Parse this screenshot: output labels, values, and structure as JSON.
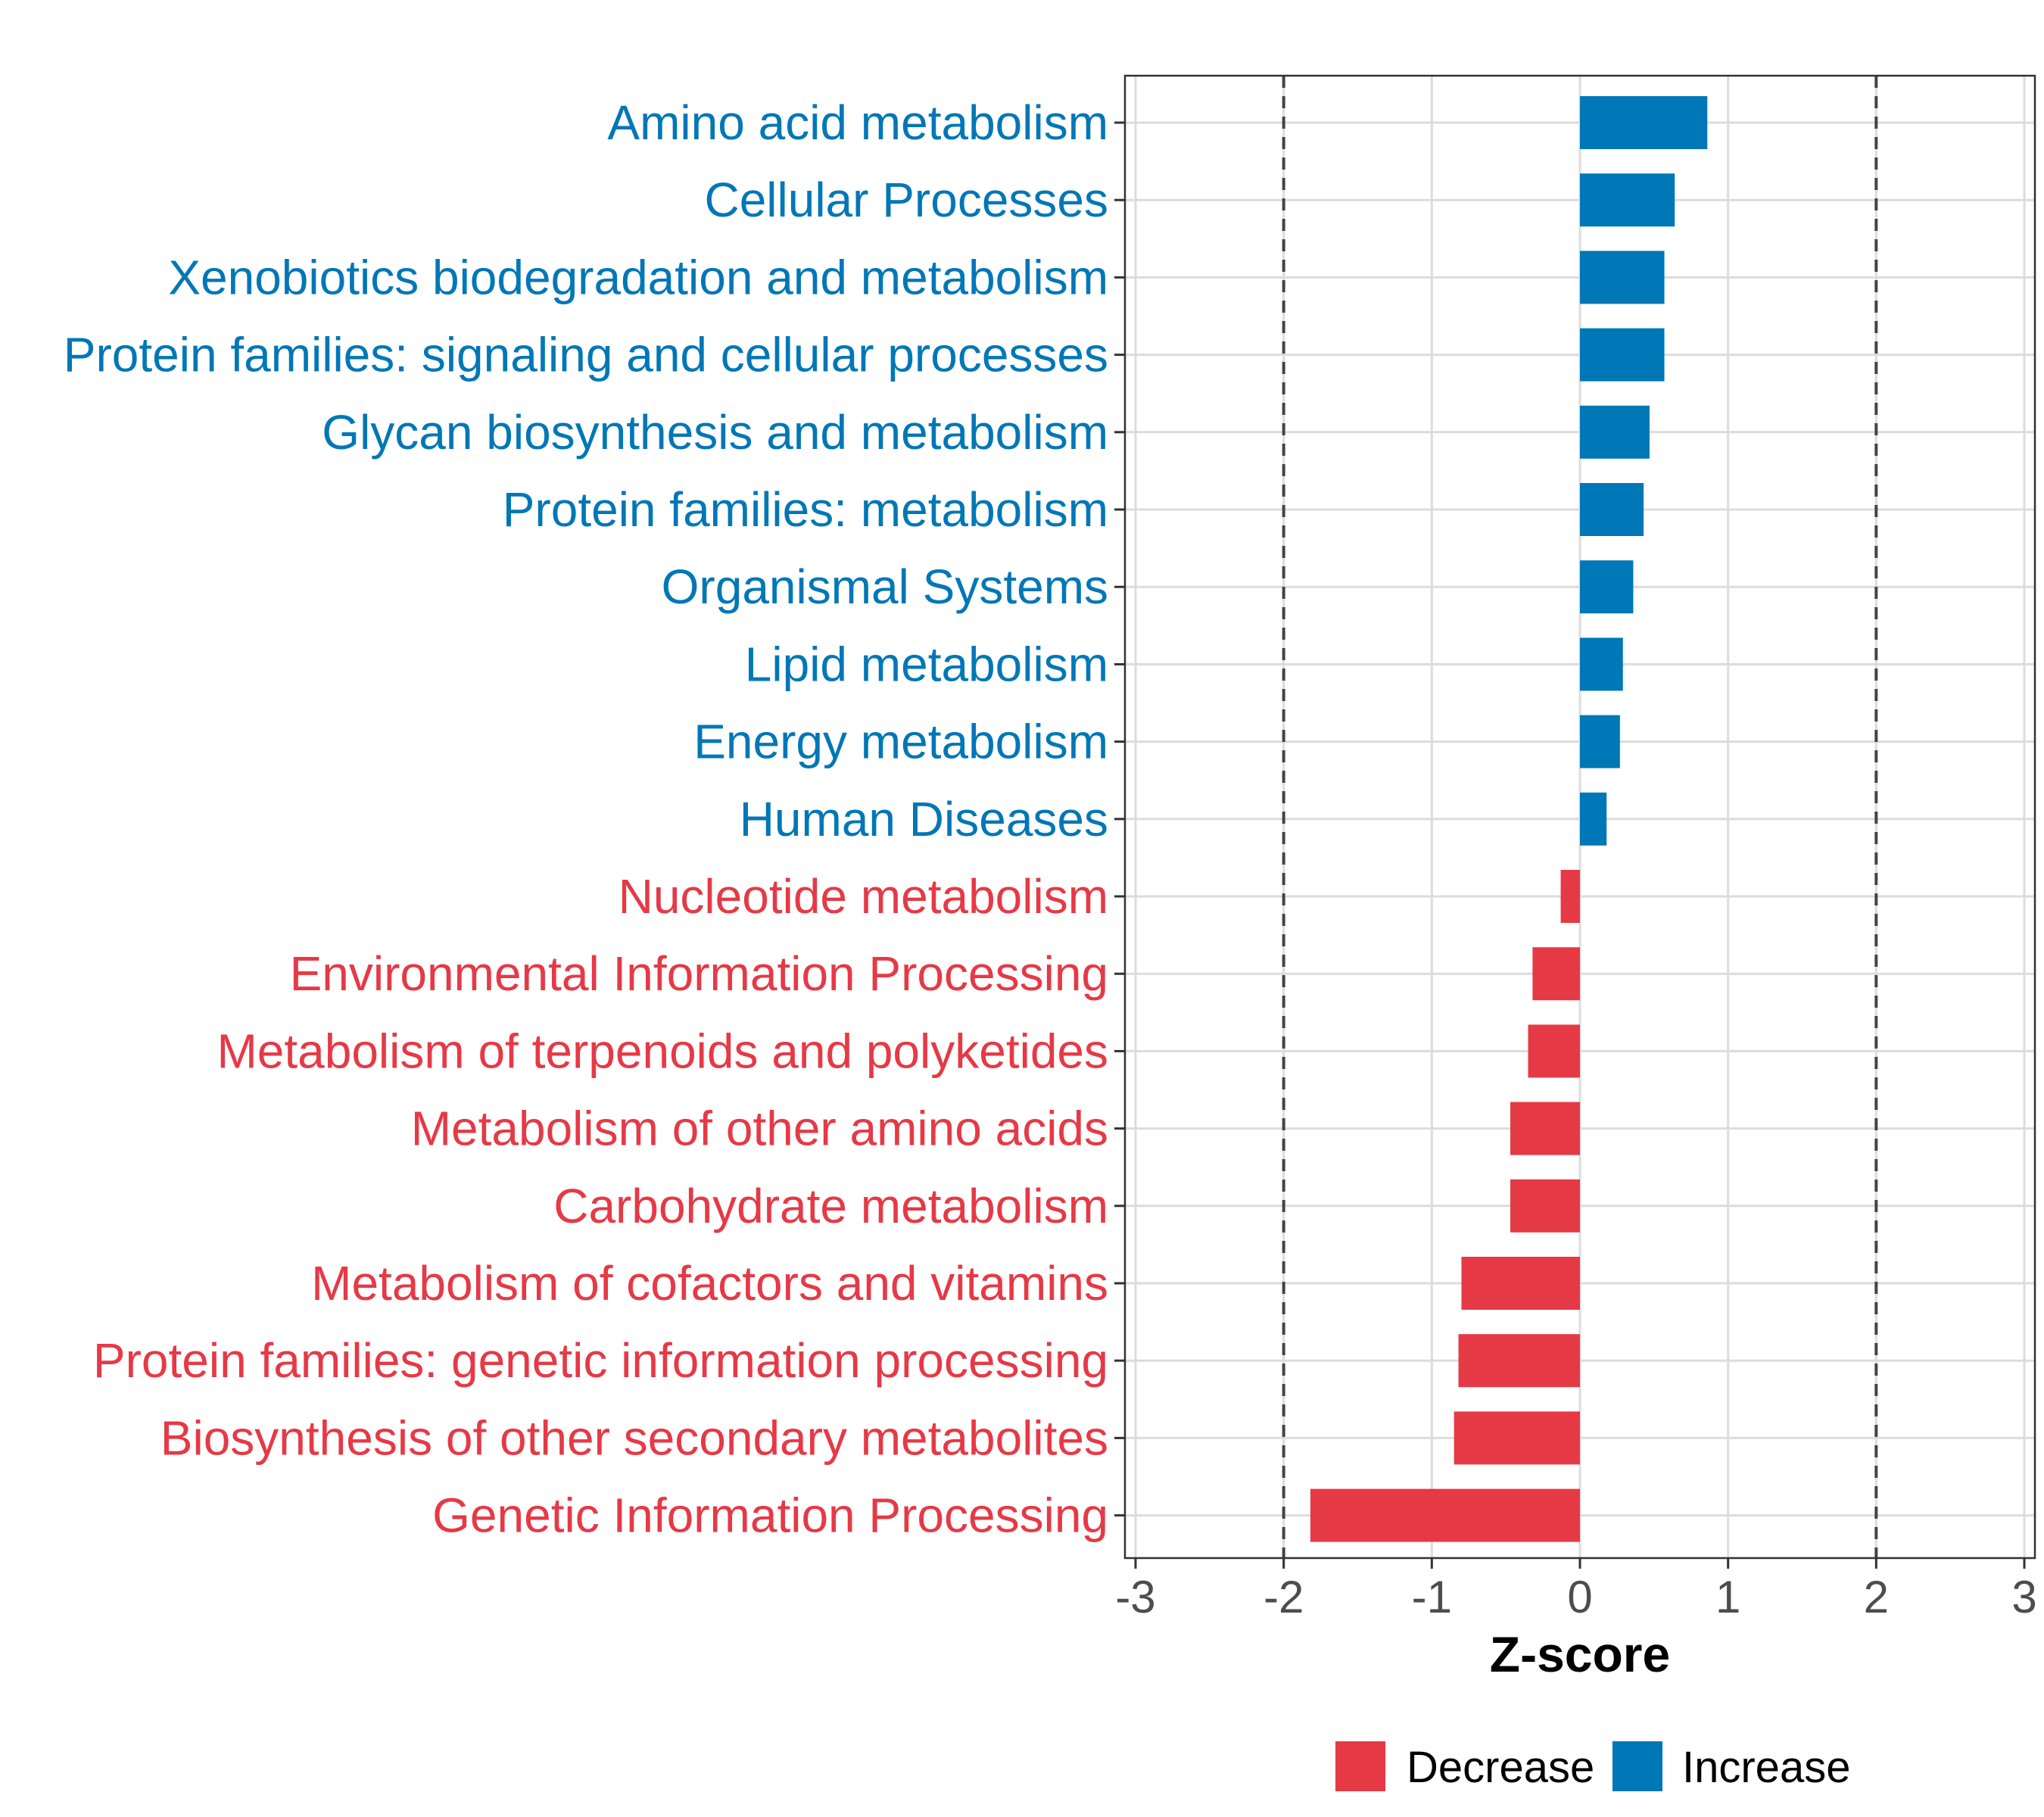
{
  "chart_data": {
    "type": "bar",
    "orientation": "horizontal",
    "xlabel": "Z-score",
    "ylabel": "",
    "xlim": [
      -3.0,
      3.0
    ],
    "xticks": [
      {
        "value": -3,
        "label": "-3"
      },
      {
        "value": -2,
        "label": "-2"
      },
      {
        "value": -1,
        "label": "-1"
      },
      {
        "value": 0,
        "label": "0"
      },
      {
        "value": 1,
        "label": "1"
      },
      {
        "value": 2,
        "label": "2"
      },
      {
        "value": 3,
        "label": "3"
      }
    ],
    "reference_lines": [
      -2,
      2
    ],
    "grid": true,
    "legend_position": "bottom",
    "colors": {
      "Decrease": "#E63946",
      "Increase": "#0077B6"
    },
    "legend": [
      {
        "key": "Decrease",
        "label": "Decrease"
      },
      {
        "key": "Increase",
        "label": "Increase"
      }
    ],
    "bars": [
      {
        "category": "Amino acid metabolism",
        "value": 0.86,
        "group": "Increase"
      },
      {
        "category": "Cellular Processes",
        "value": 0.64,
        "group": "Increase"
      },
      {
        "category": "Xenobiotics biodegradation and metabolism",
        "value": 0.57,
        "group": "Increase"
      },
      {
        "category": "Protein families: signaling and cellular processes",
        "value": 0.57,
        "group": "Increase"
      },
      {
        "category": "Glycan biosynthesis and metabolism",
        "value": 0.47,
        "group": "Increase"
      },
      {
        "category": "Protein families: metabolism",
        "value": 0.43,
        "group": "Increase"
      },
      {
        "category": "Organismal Systems",
        "value": 0.36,
        "group": "Increase"
      },
      {
        "category": "Lipid metabolism",
        "value": 0.29,
        "group": "Increase"
      },
      {
        "category": "Energy metabolism",
        "value": 0.27,
        "group": "Increase"
      },
      {
        "category": "Human Diseases",
        "value": 0.18,
        "group": "Increase"
      },
      {
        "category": "Nucleotide metabolism",
        "value": -0.13,
        "group": "Decrease"
      },
      {
        "category": "Environmental Information Processing",
        "value": -0.32,
        "group": "Decrease"
      },
      {
        "category": "Metabolism of terpenoids and polyketides",
        "value": -0.35,
        "group": "Decrease"
      },
      {
        "category": "Metabolism of other amino acids",
        "value": -0.47,
        "group": "Decrease"
      },
      {
        "category": "Carbohydrate metabolism",
        "value": -0.47,
        "group": "Decrease"
      },
      {
        "category": "Metabolism of cofactors and vitamins",
        "value": -0.8,
        "group": "Decrease"
      },
      {
        "category": "Protein families: genetic information processing",
        "value": -0.82,
        "group": "Decrease"
      },
      {
        "category": "Biosynthesis of other secondary metabolites",
        "value": -0.85,
        "group": "Decrease"
      },
      {
        "category": "Genetic Information Processing",
        "value": -1.82,
        "group": "Decrease"
      }
    ]
  }
}
